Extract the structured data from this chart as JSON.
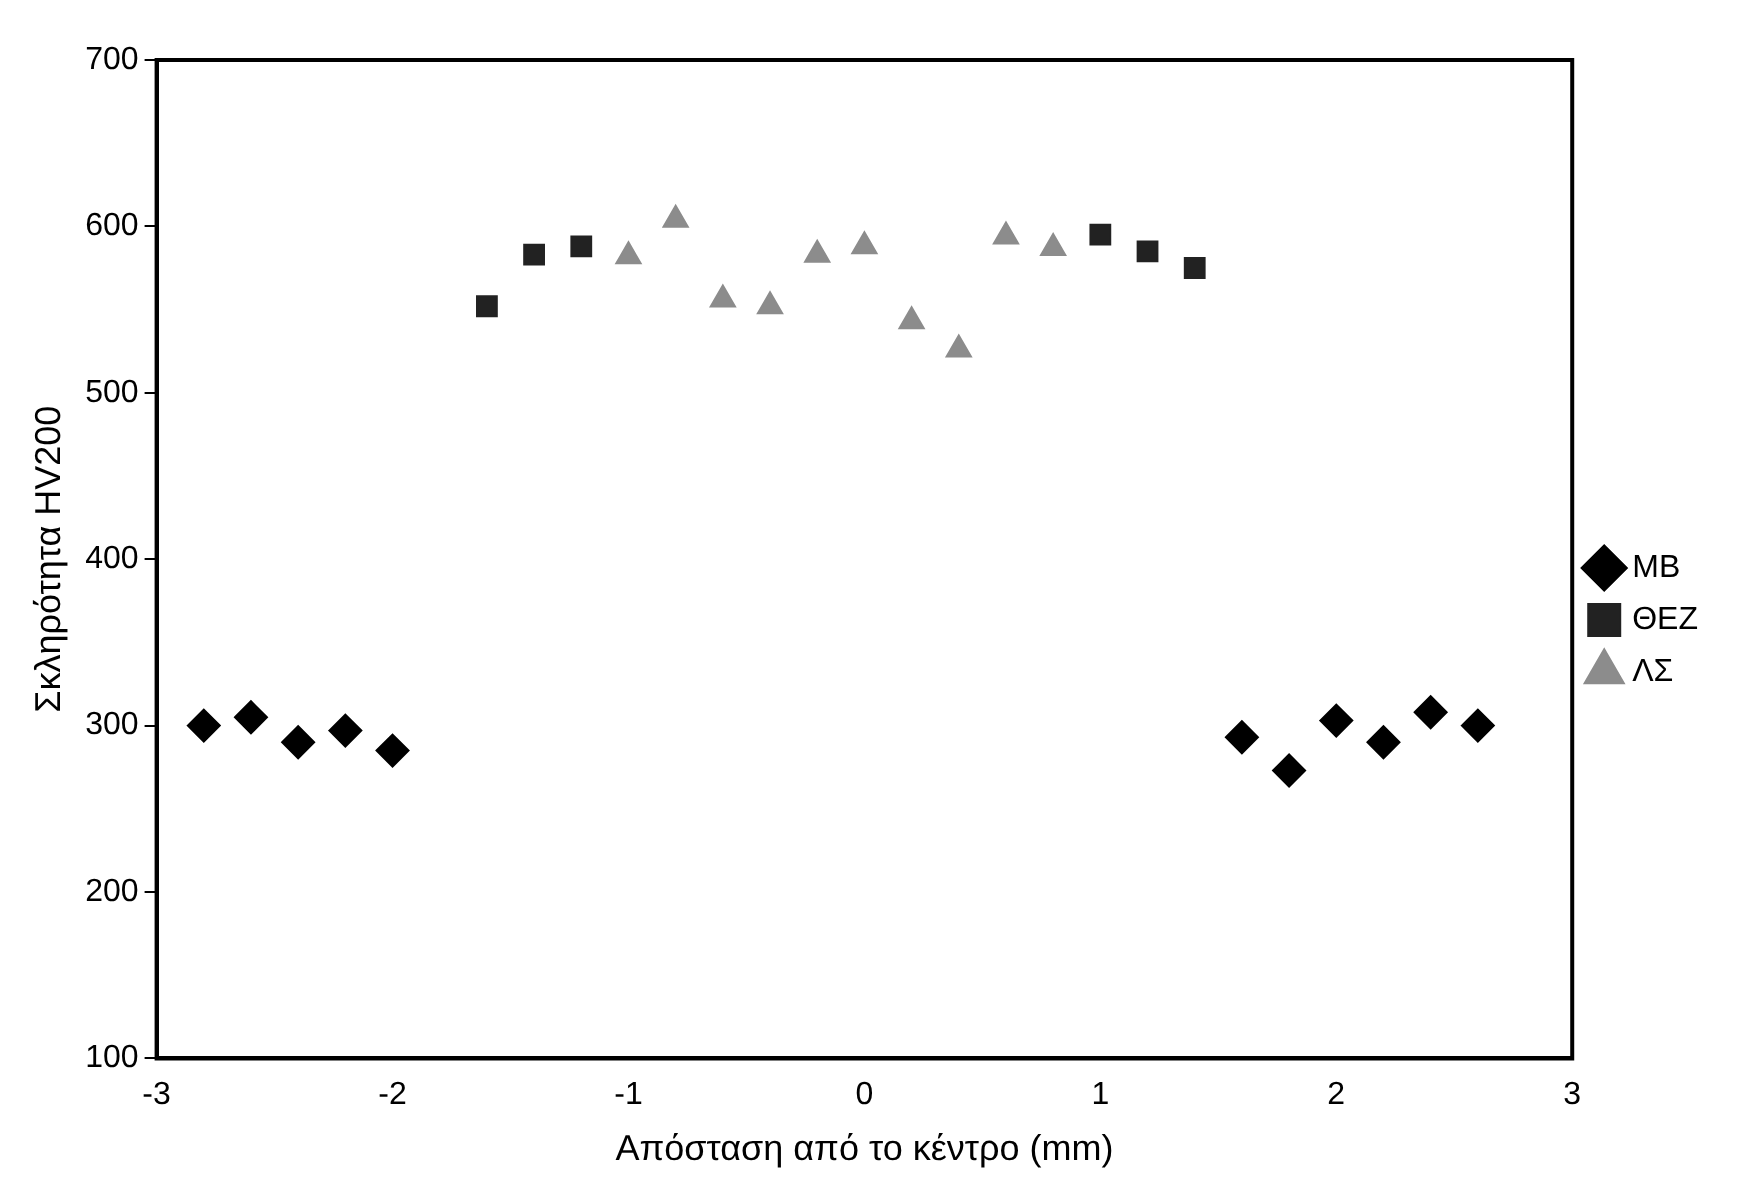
{
  "chart_data": {
    "type": "scatter",
    "xlabel": "Απόσταση από το κέντρο (mm)",
    "ylabel": "Σκληρότητα HV200",
    "xlim": [
      -3,
      3
    ],
    "xticks": [
      -3,
      -2,
      -1,
      0,
      1,
      2,
      3
    ],
    "ylim": [
      100,
      700
    ],
    "yticks": [
      100,
      200,
      300,
      400,
      500,
      600,
      700
    ],
    "grid": false,
    "legend": "right",
    "series": [
      {
        "name": "MB",
        "color": "#000000",
        "marker": "diamond",
        "x": [
          -2.8,
          -2.6,
          -2.4,
          -2.2,
          -2.0,
          1.6,
          1.8,
          2.0,
          2.2,
          2.4,
          2.6
        ],
        "values": [
          300,
          305,
          290,
          297,
          285,
          293,
          273,
          303,
          290,
          308,
          300
        ]
      },
      {
        "name": "ΘΕΖ",
        "color": "#222222",
        "marker": "square",
        "x": [
          -1.6,
          -1.4,
          -1.2,
          1.0,
          1.2,
          1.4
        ],
        "values": [
          552,
          583,
          588,
          595,
          585,
          575
        ]
      },
      {
        "name": "ΛΣ",
        "color": "#8c8c8c",
        "marker": "triangle",
        "x": [
          -1.0,
          -0.8,
          -0.6,
          -0.4,
          -0.2,
          0,
          0.2,
          0.4,
          0.6,
          0.8
        ],
        "values": [
          582,
          604,
          556,
          552,
          583,
          588,
          543,
          526,
          594,
          587
        ]
      }
    ]
  }
}
